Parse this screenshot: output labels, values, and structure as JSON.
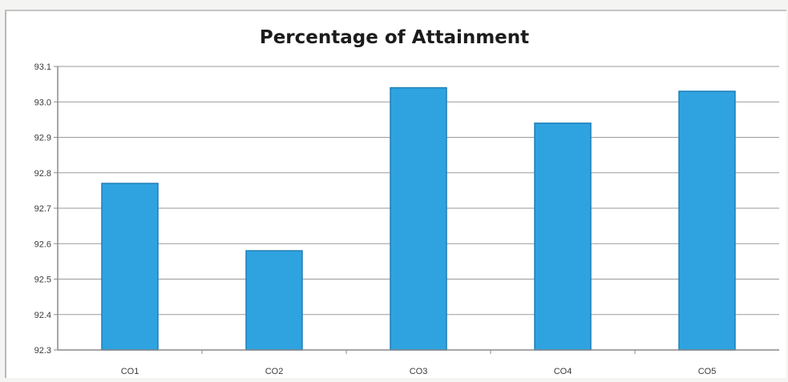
{
  "chart_data": {
    "type": "bar",
    "title": "Percentage of Attainment",
    "xlabel": "",
    "ylabel": "",
    "categories": [
      "CO1",
      "CO2",
      "CO3",
      "CO4",
      "CO5"
    ],
    "values": [
      92.77,
      92.58,
      93.04,
      92.94,
      93.03
    ],
    "ylim": [
      92.3,
      93.1
    ],
    "yticks": [
      "92.3",
      "92.4",
      "92.5",
      "92.6",
      "92.7",
      "92.8",
      "92.9",
      "93.0",
      "93.1"
    ],
    "grid": true,
    "legend": false,
    "colors": {
      "bar_fill": "#2ea3e0",
      "bar_edge": "#1f7fb8",
      "grid": "#9a9a9a",
      "axis": "#8a8a8a"
    }
  }
}
